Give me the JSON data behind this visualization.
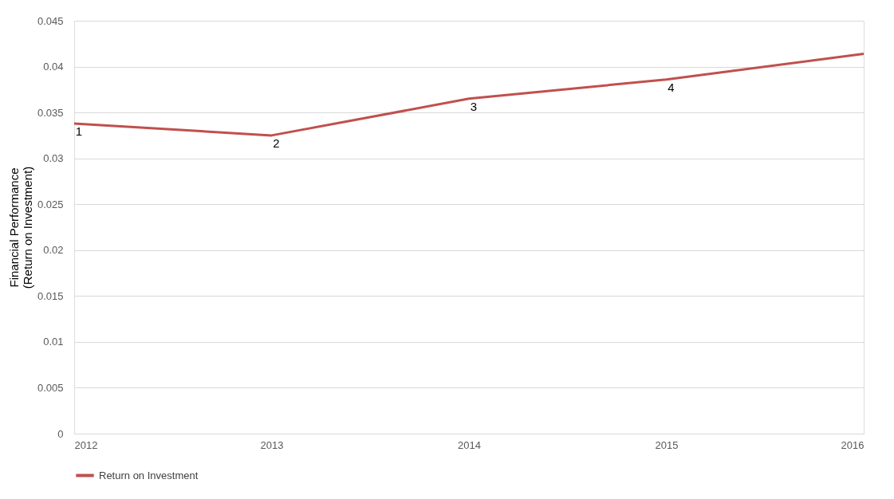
{
  "chart_data": {
    "type": "line",
    "ylabel": "Financial Performance\n(Return on Investment)",
    "x": [
      2012,
      2013,
      2014,
      2015,
      2016
    ],
    "series": [
      {
        "name": "Return on Investment",
        "color": "#c0504d",
        "values": [
          0.0338,
          0.0325,
          0.0365,
          0.0386,
          0.0414
        ]
      }
    ],
    "xlim": [
      2012,
      2016
    ],
    "xticks": [
      2012,
      2013,
      2014,
      2015,
      2016
    ],
    "ylim": [
      0,
      0.045
    ],
    "yticks": [
      0,
      0.005,
      0.01,
      0.015,
      0.02,
      0.025,
      0.03,
      0.035,
      0.04,
      0.045
    ],
    "annotations": [
      {
        "text": "1",
        "x": 2012,
        "y": 0.0338
      },
      {
        "text": "2",
        "x": 2013,
        "y": 0.0325
      },
      {
        "text": "3",
        "x": 2014,
        "y": 0.0365
      },
      {
        "text": "4",
        "x": 2015,
        "y": 0.0386
      }
    ],
    "grid": "y",
    "legend": "bottom",
    "marker": "none",
    "line_style": "solid"
  }
}
